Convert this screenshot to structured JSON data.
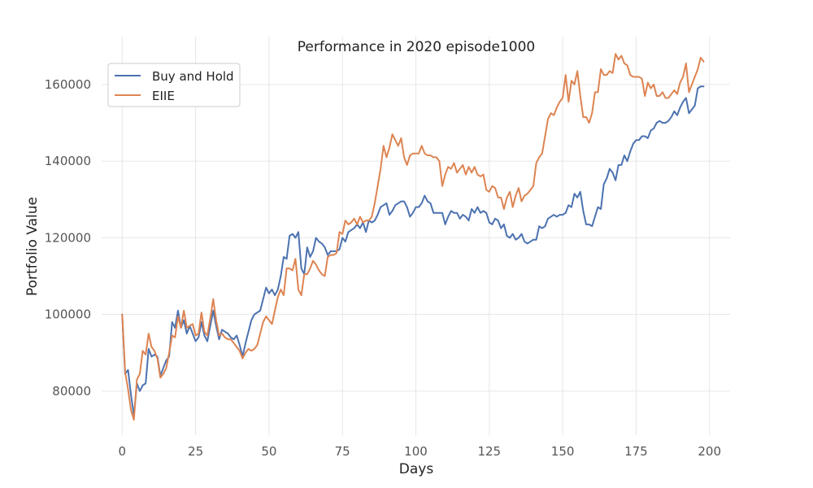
{
  "chart_data": {
    "type": "line",
    "title": "Performance in 2020 episode1000",
    "xlabel": "Days",
    "ylabel": "Portfolio Value",
    "xlim": [
      -7,
      207
    ],
    "ylim": [
      68500,
      172500
    ],
    "xticks": [
      0,
      25,
      50,
      75,
      100,
      125,
      150,
      175,
      200
    ],
    "yticks": [
      80000,
      100000,
      120000,
      140000,
      160000
    ],
    "xtick_labels": [
      "0",
      "25",
      "50",
      "75",
      "100",
      "125",
      "150",
      "175",
      "200"
    ],
    "ytick_labels": [
      "80000",
      "100000",
      "120000",
      "140000",
      "160000"
    ],
    "grid": true,
    "legend_position": "top-left",
    "series": [
      {
        "name": "Buy and Hold",
        "color": "#4c72b0",
        "values": [
          100000,
          84500,
          85500,
          79000,
          73500,
          82000,
          80000,
          81500,
          82000,
          91000,
          89000,
          89500,
          89000,
          84000,
          86000,
          88000,
          89000,
          98000,
          96500,
          101000,
          96500,
          98500,
          95000,
          97000,
          95000,
          93000,
          94000,
          98000,
          94500,
          93000,
          97000,
          101000,
          97000,
          93500,
          96000,
          95500,
          95000,
          94000,
          93500,
          94500,
          92000,
          89000,
          92500,
          95500,
          98500,
          100000,
          100500,
          101000,
          104000,
          107000,
          105500,
          106500,
          105000,
          106500,
          110000,
          115000,
          114500,
          120500,
          121000,
          120000,
          121500,
          112000,
          110500,
          117500,
          115000,
          116500,
          120000,
          119000,
          118500,
          117500,
          115500,
          116500,
          116500,
          116500,
          117000,
          120000,
          119000,
          121500,
          122000,
          122500,
          123500,
          122500,
          124000,
          121500,
          124500,
          124000,
          124500,
          126000,
          128000,
          128500,
          129000,
          126000,
          127000,
          128500,
          129000,
          129500,
          129500,
          128000,
          125500,
          126500,
          128000,
          128000,
          129000,
          131000,
          129500,
          129000,
          126500,
          126500,
          126500,
          126500,
          123500,
          125500,
          127000,
          126500,
          126500,
          125000,
          126000,
          125500,
          124500,
          127500,
          126500,
          128000,
          126500,
          127000,
          126500,
          124000,
          123500,
          125000,
          124500,
          122500,
          123500,
          120500,
          120000,
          121000,
          119500,
          120000,
          121000,
          119000,
          118500,
          119000,
          119500,
          119500,
          123000,
          122500,
          123000,
          125000,
          125500,
          126000,
          125500,
          126000,
          126000,
          126500,
          128500,
          128000,
          131500,
          130500,
          132000,
          127000,
          123500,
          123500,
          123000,
          125500,
          128000,
          127500,
          134000,
          135500,
          138000,
          137000,
          135000,
          139000,
          139000,
          141500,
          140000,
          142500,
          144500,
          145500,
          145500,
          146500,
          146500,
          146000,
          148000,
          148500,
          150000,
          150500,
          150000,
          150000,
          150500,
          151500,
          153000,
          152000,
          154000,
          155500,
          156500,
          152500,
          153500,
          154500,
          159000,
          159500,
          159500
        ]
      },
      {
        "name": "EIIE",
        "color": "#dd8452",
        "values": [
          100000,
          85000,
          80500,
          75000,
          72500,
          83000,
          84500,
          90500,
          89500,
          95000,
          91500,
          90500,
          88500,
          83500,
          84500,
          86000,
          90000,
          94500,
          94000,
          99500,
          96500,
          101000,
          96500,
          97000,
          97500,
          94500,
          95000,
          100500,
          95500,
          94500,
          99000,
          104000,
          98500,
          94500,
          95000,
          94000,
          93500,
          93500,
          92500,
          91500,
          90500,
          88500,
          90000,
          91000,
          90500,
          91000,
          92000,
          95000,
          98000,
          99500,
          98500,
          97500,
          101000,
          104500,
          106500,
          105000,
          112000,
          112000,
          111500,
          114500,
          106500,
          105000,
          110500,
          110500,
          112000,
          114000,
          113000,
          111500,
          110500,
          110000,
          115000,
          115500,
          115500,
          116000,
          121500,
          121000,
          124500,
          123500,
          124000,
          125000,
          123500,
          125500,
          124000,
          124500,
          124500,
          125500,
          129000,
          133500,
          138000,
          144000,
          141000,
          143500,
          147000,
          145500,
          144000,
          146000,
          141000,
          139000,
          141500,
          142000,
          142000,
          142000,
          144000,
          142000,
          141500,
          141500,
          141000,
          141000,
          140000,
          133500,
          136500,
          138500,
          138000,
          139500,
          137000,
          138000,
          139000,
          136500,
          138500,
          137000,
          138500,
          136500,
          136000,
          136500,
          132500,
          132000,
          133500,
          133000,
          130500,
          130500,
          127500,
          130500,
          132000,
          128000,
          131000,
          133000,
          129500,
          131000,
          131500,
          132500,
          133500,
          139500,
          141000,
          142000,
          146500,
          151000,
          152500,
          152000,
          154000,
          155500,
          156500,
          162500,
          155500,
          161000,
          160000,
          163500,
          157000,
          151500,
          151500,
          150000,
          152500,
          158000,
          158000,
          164000,
          162500,
          162500,
          163500,
          163000,
          168000,
          166500,
          167500,
          165500,
          165000,
          162500,
          162000,
          162000,
          162000,
          161500,
          157000,
          160500,
          159000,
          160000,
          157000,
          157000,
          158000,
          156500,
          156500,
          157500,
          158500,
          157500,
          160500,
          162000,
          165500,
          158000,
          160000,
          162000,
          164000,
          167000,
          166000
        ]
      }
    ]
  }
}
